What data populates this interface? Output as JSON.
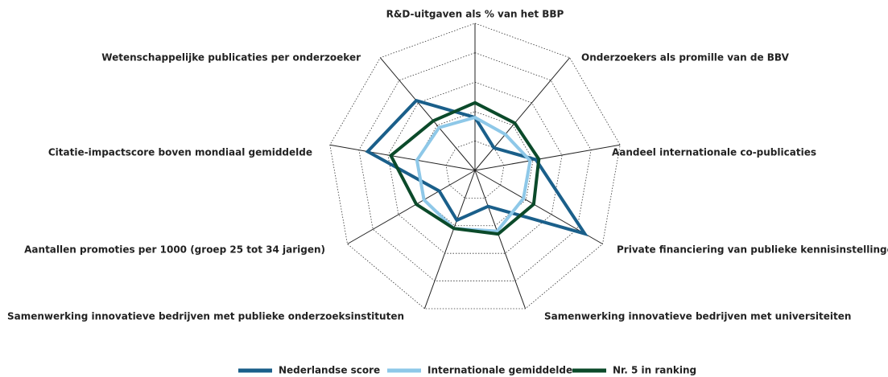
{
  "chart_data": {
    "type": "radar",
    "categories": [
      "R&D-uitgaven als % van het BBP",
      "Onderzoekers als promille van de BBV",
      "Aandeel internationale co-publicaties",
      "Private financiering van publieke kennisinstellingen",
      "Samenwerking innovatieve bedrijven met universiteiten",
      "Samenwerking innovatieve bedrijven met publieke onderzoeksinstituten",
      "Aantallen promoties per 1000 (groep 25 tot 34 jarigen)",
      "Citatie-impactscore boven mondiaal gemiddelde",
      "Wetenschappelijke publicaties per onderzoeker"
    ],
    "series": [
      {
        "name": "Nederlandse score",
        "color": "#1a5f8a",
        "values": [
          1.8,
          1.0,
          2.1,
          4.3,
          1.3,
          1.8,
          1.4,
          3.7,
          3.1
        ]
      },
      {
        "name": "Internationale gemiddelde",
        "color": "#8ec8e8",
        "values": [
          1.8,
          1.6,
          1.9,
          1.9,
          2.2,
          2.1,
          2.0,
          2.0,
          1.9
        ]
      },
      {
        "name": "Nr. 5 in ranking",
        "color": "#0b4a2a",
        "values": [
          2.3,
          2.1,
          2.2,
          2.3,
          2.3,
          2.1,
          2.3,
          2.9,
          2.2
        ]
      }
    ],
    "rlim": [
      0,
      5
    ],
    "rticks": [
      1,
      2,
      3,
      4,
      5
    ],
    "grid": true,
    "legend": "bottom"
  }
}
